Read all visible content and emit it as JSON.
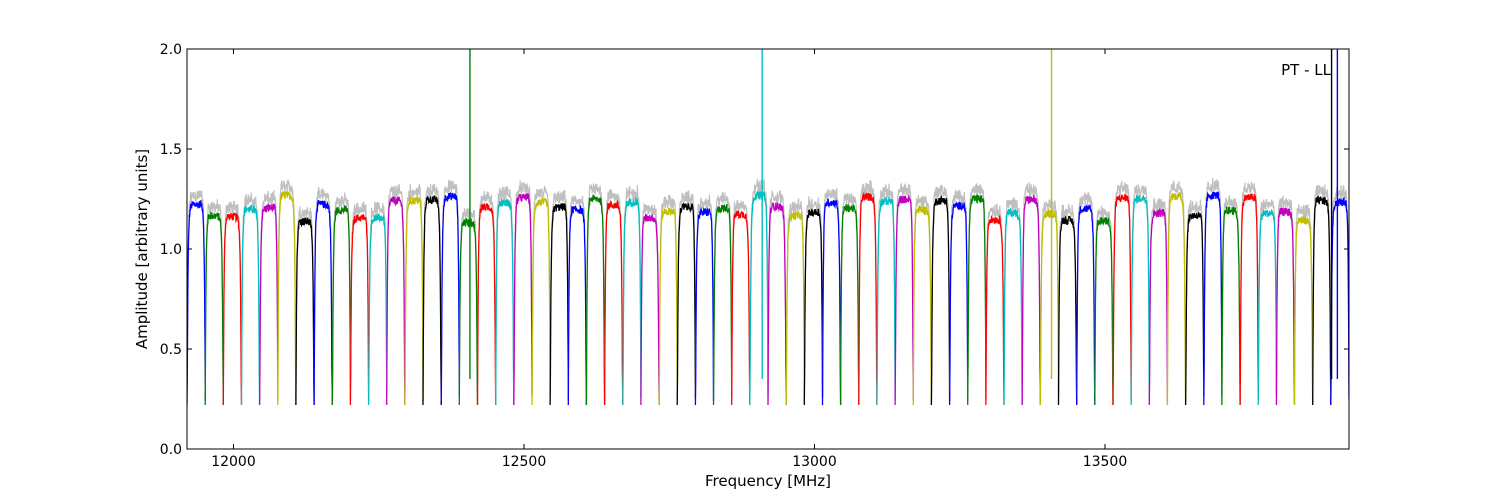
{
  "chart_data": {
    "type": "line",
    "title": "",
    "xlabel": "Frequency [MHz]",
    "ylabel": "Amplitude [arbitrary units]",
    "xlim": [
      11920,
      13920
    ],
    "ylim": [
      0.0,
      2.0
    ],
    "xticks": [
      12000,
      12500,
      13000,
      13500
    ],
    "yticks": [
      0.0,
      0.5,
      1.0,
      1.5,
      2.0
    ],
    "xtick_labels": [
      "12000",
      "12500",
      "13000",
      "13500"
    ],
    "ytick_labels": [
      "0.0",
      "0.5",
      "1.0",
      "1.5",
      "2.0"
    ],
    "grid": false,
    "annotation": "PT - LL",
    "background_series_color": "#bfbfbf",
    "palette": [
      "#0000ff",
      "#008000",
      "#ff0000",
      "#00bfbf",
      "#bf00bf",
      "#bfbf00",
      "#000000"
    ],
    "channels": {
      "count": 64,
      "start_mhz": 11920,
      "width_mhz": 31.25
    },
    "spikes": [
      {
        "x": 12407,
        "color": "#008000"
      },
      {
        "x": 12910,
        "color": "#00bfbf"
      },
      {
        "x": 13408,
        "color": "#bfbf00"
      },
      {
        "x": 13890,
        "color": "#000000"
      },
      {
        "x": 13900,
        "color": "#0000ff"
      }
    ]
  }
}
